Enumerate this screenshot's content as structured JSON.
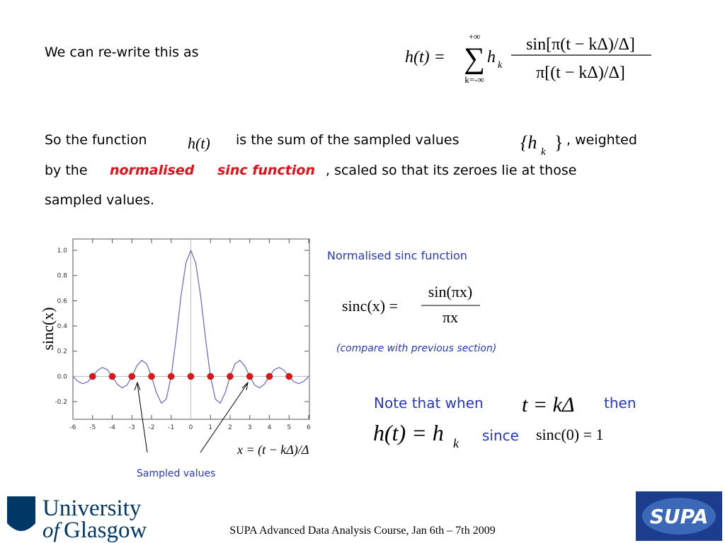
{
  "intro": "We can re-write this as",
  "eq1": {
    "lhs": "h(t) =",
    "sum_top": "+∞",
    "sum": "∑",
    "sum_bottom": "k=-∞",
    "coef": "h",
    "coef_sub": "k",
    "numerator": "sin[π(t − kΔ)/Δ]",
    "denominator": "π[(t − kΔ)/Δ]"
  },
  "para": {
    "part1": "So the function",
    "math1": "h(t)",
    "part2": "is the sum of the sampled values",
    "math2": "{h",
    "math2_sub": "k",
    "math2_close": "}",
    "part3": ",  weighted",
    "line2_start": "by the",
    "highlight1": "normalised",
    "highlight2": "sinc function",
    "line2_end": ",  scaled so that its zeroes lie at those",
    "line3": "sampled values."
  },
  "plot": {
    "ylabel": "sinc(x)",
    "xlim": [
      -6,
      6
    ],
    "ylim": [
      -0.34,
      1.09
    ],
    "xticks": [
      -6,
      -5,
      -4,
      -3,
      -2,
      -1,
      0,
      1,
      2,
      3,
      4,
      5,
      6
    ],
    "yticks": [
      {
        "value": 1,
        "label": "1.0"
      },
      0.8,
      0.6,
      0.4,
      0.2,
      {
        "value": 0,
        "label": "0.0"
      },
      -0.2
    ],
    "curve": {
      "x": [
        -6,
        -5.75,
        -5.5,
        -5.25,
        -5,
        -4.75,
        -4.5,
        -4.25,
        -4,
        -3.75,
        -3.5,
        -3.25,
        -3,
        -2.75,
        -2.5,
        -2.25,
        -2,
        -1.75,
        -1.5,
        -1.25,
        -1,
        -0.75,
        -0.5,
        -0.25,
        0,
        0.25,
        0.5,
        0.75,
        1,
        1.25,
        1.5,
        1.75,
        2,
        2.25,
        2.5,
        2.75,
        3,
        3.25,
        3.5,
        3.75,
        4,
        4.25,
        4.5,
        4.75,
        5,
        5.25,
        5.5,
        5.75,
        6
      ],
      "y": [
        0,
        -0.039,
        -0.058,
        -0.043,
        0,
        0.047,
        0.071,
        0.053,
        0,
        -0.06,
        -0.091,
        -0.069,
        0,
        0.082,
        0.127,
        0.1,
        0,
        -0.129,
        -0.212,
        -0.18,
        0,
        0.3,
        0.637,
        0.9,
        1,
        0.9,
        0.637,
        0.3,
        0,
        -0.18,
        -0.212,
        -0.129,
        0,
        0.1,
        0.127,
        0.082,
        0,
        -0.069,
        -0.091,
        -0.06,
        0,
        0.053,
        0.071,
        0.047,
        0,
        -0.043,
        -0.058,
        -0.039,
        0
      ]
    },
    "samples": {
      "x": [
        -5,
        -4,
        -3,
        -2,
        -1,
        0,
        1,
        2,
        3,
        4,
        5
      ],
      "y": [
        0,
        0,
        0,
        0,
        0,
        0,
        0,
        0,
        0,
        0,
        0
      ]
    },
    "annotation": "Sampled values",
    "xformula": "x = (t − kΔ)/Δ"
  },
  "sinc_def": {
    "title": "Normalised sinc function",
    "lhs": "sinc(x) =",
    "numerator": "sin(πx)",
    "denominator": "πx",
    "note": "(compare with previous section)"
  },
  "note": {
    "part1": "Note that when",
    "math1": "t = kΔ",
    "part2": "then",
    "math2": "h(t) = h",
    "math2_sub": "k",
    "part3": "since",
    "math3": "sinc(0) = 1"
  },
  "footer": {
    "logo_line1": "University",
    "logo_of": "of",
    "logo_line2": "Glasgow",
    "course": "SUPA Advanced Data Analysis Course, Jan 6th – 7th 2009",
    "supa": "SUPA"
  }
}
